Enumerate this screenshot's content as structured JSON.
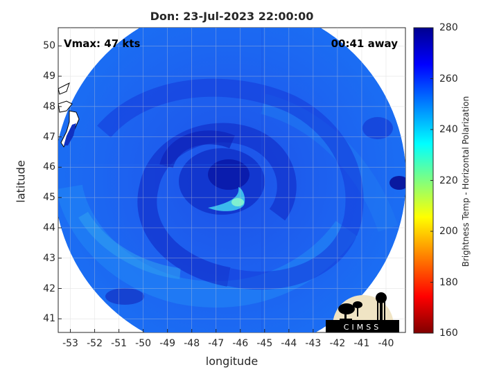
{
  "title": "Don: 23-Jul-2023 22:00:00",
  "vmax_text": "Vmax: 47 kts",
  "away_text": "00:41 away",
  "xlabel": "longitude",
  "ylabel": "latitude",
  "colorbar_label": "Brightness Temp - Horizontal Polarization",
  "logo_text": "CIMSS",
  "x_ticks": [
    "-53",
    "-52",
    "-51",
    "-50",
    "-49",
    "-48",
    "-47",
    "-46",
    "-45",
    "-44",
    "-43",
    "-42",
    "-41",
    "-40"
  ],
  "y_ticks": [
    "41",
    "42",
    "43",
    "44",
    "45",
    "46",
    "47",
    "48",
    "49",
    "50"
  ],
  "colorbar_ticks": [
    "160",
    "180",
    "200",
    "220",
    "240",
    "260",
    "280"
  ],
  "colorbar_range": [
    160,
    280
  ],
  "x_range": [
    -53.5,
    -39.2
  ],
  "y_range": [
    40.55,
    50.6
  ],
  "swath_center": [
    -46.7,
    45.5
  ],
  "storm_eye": [
    -46.2,
    45.3
  ],
  "colors": {
    "background_scene": "#1a5ef0",
    "cold_band": "#0a1fb0",
    "warm_band": "#1aa0f0",
    "eye_highlight": "#7ef0d0"
  }
}
